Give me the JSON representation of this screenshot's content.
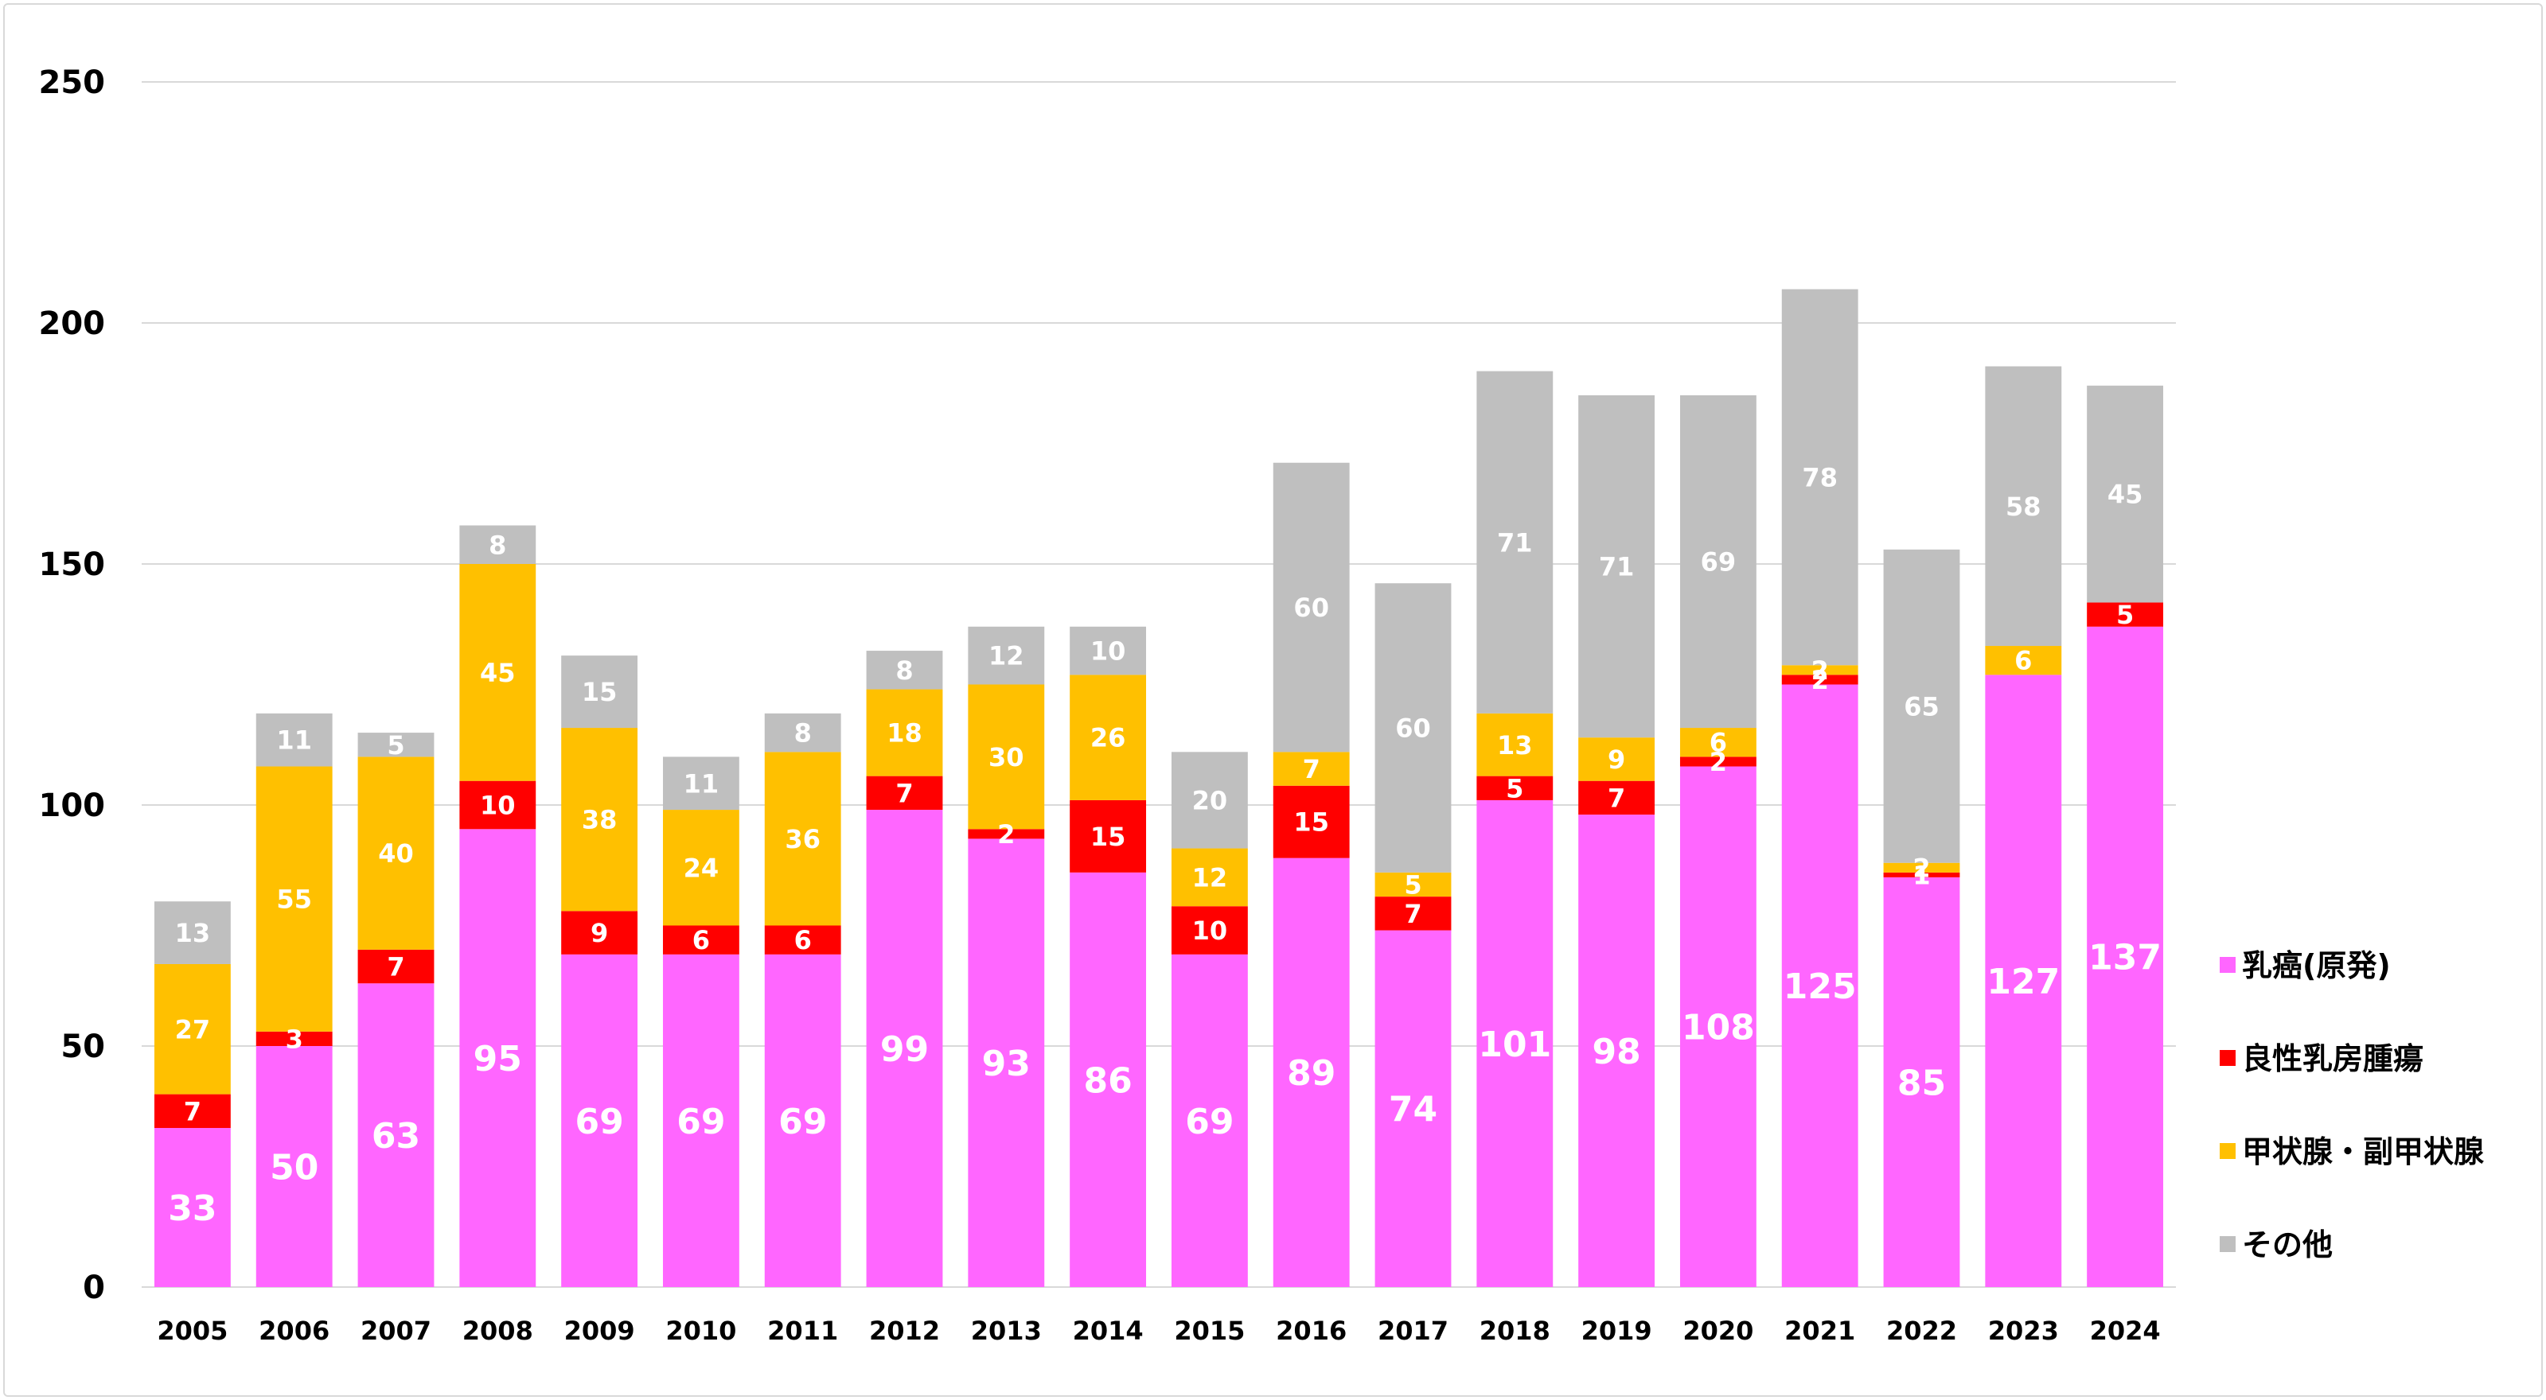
{
  "chart_data": {
    "type": "bar",
    "stacked": true,
    "title": "",
    "xlabel": "",
    "ylabel": "",
    "ylim": [
      0,
      250
    ],
    "yticks": [
      0,
      50,
      100,
      150,
      200,
      250
    ],
    "grid": true,
    "legend_position": "right",
    "categories": [
      "2005",
      "2006",
      "2007",
      "2008",
      "2009",
      "2010",
      "2011",
      "2012",
      "2013",
      "2014",
      "2015",
      "2016",
      "2017",
      "2018",
      "2019",
      "2020",
      "2021",
      "2022",
      "2023",
      "2024"
    ],
    "series": [
      {
        "name": "乳癌(原発)",
        "color": "#ff66ff",
        "values": [
          33,
          50,
          63,
          95,
          69,
          69,
          69,
          99,
          93,
          86,
          69,
          89,
          74,
          101,
          98,
          108,
          125,
          85,
          127,
          137
        ]
      },
      {
        "name": "良性乳房腫瘍",
        "color": "#ff0000",
        "values": [
          7,
          3,
          7,
          10,
          9,
          6,
          6,
          7,
          2,
          15,
          10,
          15,
          7,
          5,
          7,
          2,
          2,
          1,
          0,
          5
        ]
      },
      {
        "name": "甲状腺・副甲状腺",
        "color": "#ffc000",
        "values": [
          27,
          55,
          40,
          45,
          38,
          24,
          36,
          18,
          30,
          26,
          12,
          7,
          5,
          13,
          9,
          6,
          2,
          2,
          6,
          0
        ]
      },
      {
        "name": "その他",
        "color": "#bfbfbf",
        "values": [
          13,
          11,
          5,
          8,
          15,
          11,
          8,
          8,
          12,
          10,
          20,
          60,
          60,
          71,
          71,
          69,
          78,
          65,
          58,
          45
        ]
      }
    ]
  }
}
